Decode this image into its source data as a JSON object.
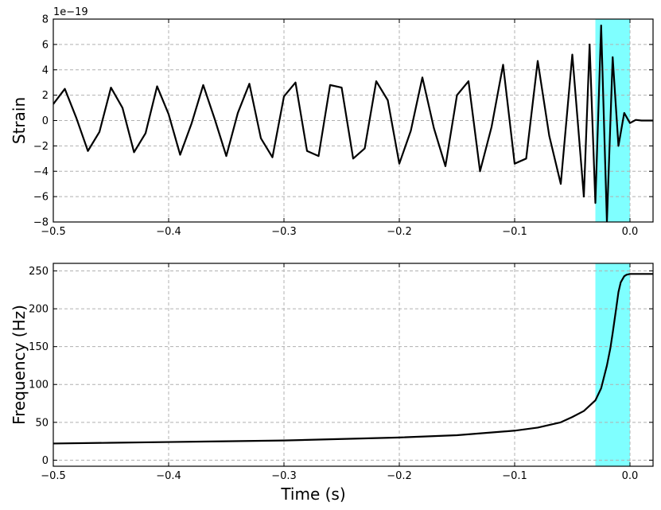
{
  "chart_data": [
    {
      "type": "line",
      "id": "strain",
      "ylabel": "Strain",
      "scale_label": "1e−19",
      "xlim": [
        -0.5,
        0.02
      ],
      "ylim": [
        -8,
        8
      ],
      "xticks": [
        -0.5,
        -0.4,
        -0.3,
        -0.2,
        -0.1,
        0.0
      ],
      "xtick_labels": [
        "−0.5",
        "−0.4",
        "−0.3",
        "−0.2",
        "−0.1",
        "0.0"
      ],
      "yticks": [
        -8,
        -6,
        -4,
        -2,
        0,
        2,
        4,
        6,
        8
      ],
      "ytick_labels": [
        "−8",
        "−6",
        "−4",
        "−2",
        "0",
        "2",
        "4",
        "6",
        "8"
      ],
      "grid": true,
      "highlight_span": [
        -0.03,
        0.0
      ],
      "highlight_color": "#00ffff",
      "series": [
        {
          "color": "#000000",
          "x": [
            -0.5,
            -0.49,
            -0.48,
            -0.47,
            -0.46,
            -0.45,
            -0.44,
            -0.43,
            -0.42,
            -0.41,
            -0.4,
            -0.39,
            -0.38,
            -0.37,
            -0.36,
            -0.35,
            -0.34,
            -0.33,
            -0.32,
            -0.31,
            -0.3,
            -0.29,
            -0.28,
            -0.27,
            -0.26,
            -0.25,
            -0.24,
            -0.23,
            -0.22,
            -0.21,
            -0.2,
            -0.19,
            -0.18,
            -0.17,
            -0.16,
            -0.15,
            -0.14,
            -0.13,
            -0.12,
            -0.11,
            -0.1,
            -0.09,
            -0.08,
            -0.07,
            -0.06,
            -0.05,
            -0.04,
            -0.035,
            -0.03,
            -0.025,
            -0.02,
            -0.015,
            -0.01,
            -0.005,
            0.0,
            0.005,
            0.01,
            0.02
          ],
          "y": [
            1.3,
            2.5,
            0.2,
            -2.4,
            -0.9,
            2.6,
            1.0,
            -2.5,
            -1.0,
            2.7,
            0.5,
            -2.7,
            -0.2,
            2.8,
            0.1,
            -2.8,
            0.6,
            2.9,
            -1.4,
            -2.9,
            1.9,
            3.0,
            -2.4,
            -2.8,
            2.8,
            2.6,
            -3.0,
            -2.2,
            3.1,
            1.6,
            -3.4,
            -0.8,
            3.4,
            -0.6,
            -3.6,
            2.0,
            3.1,
            -4.0,
            -0.5,
            4.4,
            -3.4,
            -3.0,
            4.7,
            -1.2,
            -5.0,
            5.2,
            -6.0,
            6.0,
            -6.5,
            7.5,
            -8.0,
            5.0,
            -2.0,
            0.6,
            -0.2,
            0.05,
            0.0,
            0.0
          ]
        }
      ]
    },
    {
      "type": "line",
      "id": "frequency",
      "xlabel": "Time (s)",
      "ylabel": "Frequency (Hz)",
      "xlim": [
        -0.5,
        0.02
      ],
      "ylim": [
        -8,
        260
      ],
      "xticks": [
        -0.5,
        -0.4,
        -0.3,
        -0.2,
        -0.1,
        0.0
      ],
      "xtick_labels": [
        "−0.5",
        "−0.4",
        "−0.3",
        "−0.2",
        "−0.1",
        "0.0"
      ],
      "yticks": [
        0,
        50,
        100,
        150,
        200,
        250
      ],
      "ytick_labels": [
        "0",
        "50",
        "100",
        "150",
        "200",
        "250"
      ],
      "grid": true,
      "highlight_span": [
        -0.03,
        0.0
      ],
      "highlight_color": "#00ffff",
      "series": [
        {
          "color": "#000000",
          "x": [
            -0.5,
            -0.45,
            -0.4,
            -0.35,
            -0.3,
            -0.25,
            -0.2,
            -0.15,
            -0.1,
            -0.08,
            -0.06,
            -0.05,
            -0.04,
            -0.03,
            -0.025,
            -0.02,
            -0.017,
            -0.015,
            -0.012,
            -0.01,
            -0.008,
            -0.005,
            -0.003,
            0.0,
            0.005,
            0.02
          ],
          "y": [
            22,
            23,
            24,
            25,
            26,
            28,
            30,
            33,
            39,
            43,
            50,
            57,
            65,
            79,
            95,
            125,
            148,
            168,
            200,
            222,
            235,
            243,
            245,
            246,
            246,
            246
          ]
        }
      ]
    }
  ]
}
